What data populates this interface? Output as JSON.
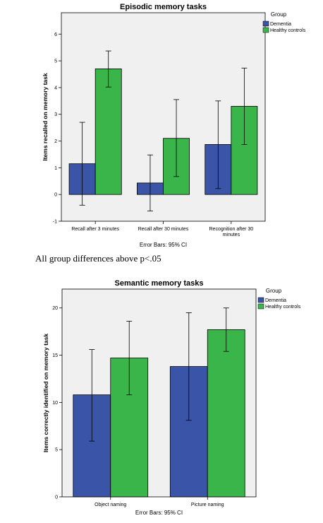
{
  "chart_data": [
    {
      "type": "bar",
      "title": "Episodic memory tasks",
      "ylabel": "Items recalled on memory task",
      "xlabel": "",
      "ylim": [
        -1,
        6.8
      ],
      "yticks": [
        -1,
        0,
        1,
        2,
        3,
        4,
        5,
        6
      ],
      "categories": [
        [
          "Recall after 3 minutes"
        ],
        [
          "Recall after 30 minutes"
        ],
        [
          "Recognition after 30",
          "minutes"
        ]
      ],
      "series": [
        {
          "name": "Dementia",
          "color": "#3a55a8",
          "values": [
            1.15,
            0.43,
            1.87
          ],
          "ci_low": [
            -0.4,
            -0.62,
            0.22
          ],
          "ci_high": [
            2.7,
            1.48,
            3.5
          ]
        },
        {
          "name": "Healthy controls",
          "color": "#39b54a",
          "values": [
            4.7,
            2.1,
            3.3
          ],
          "ci_low": [
            4.02,
            0.67,
            1.87
          ],
          "ci_high": [
            5.37,
            3.55,
            4.73
          ]
        }
      ],
      "legend": {
        "title": "Group",
        "placement": "right"
      },
      "note": "Error Bars: 95% CI",
      "grid": false
    },
    {
      "type": "bar",
      "title": "Semantic memory tasks",
      "ylabel": "Items correctly identified on memory task",
      "xlabel": "",
      "ylim": [
        0,
        22
      ],
      "yticks": [
        0,
        5,
        10,
        15,
        20
      ],
      "categories": [
        [
          "Object naming"
        ],
        [
          "Picture naming"
        ]
      ],
      "series": [
        {
          "name": "Dementia",
          "color": "#3a55a8",
          "values": [
            10.8,
            13.8
          ],
          "ci_low": [
            5.9,
            8.1
          ],
          "ci_high": [
            15.6,
            19.5
          ]
        },
        {
          "name": "Healthy controls",
          "color": "#39b54a",
          "values": [
            14.7,
            17.7
          ],
          "ci_low": [
            10.8,
            15.4
          ],
          "ci_high": [
            18.6,
            20.0
          ]
        }
      ],
      "legend": {
        "title": "Group",
        "placement": "right"
      },
      "note": "Error Bars: 95% CI",
      "grid": false
    }
  ],
  "remark": "All group differences above p<.05"
}
